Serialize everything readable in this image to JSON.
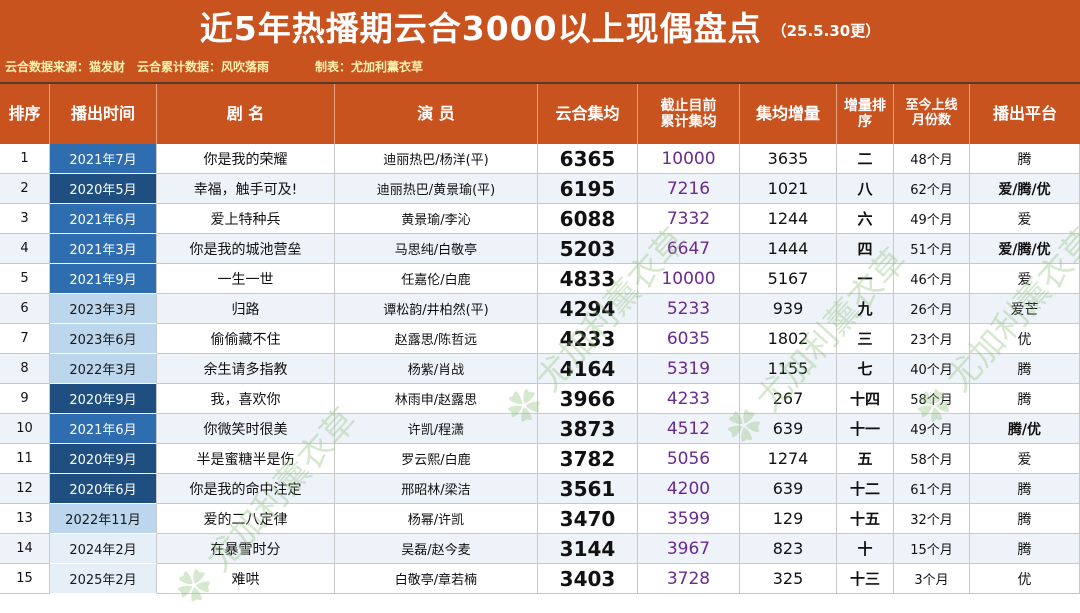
{
  "title": "近5年热播期云合3000以上现偶盘点",
  "update_note": "（25.5.30更）",
  "info": {
    "source": "云合数据来源：猫发财",
    "cumulative_source": "云合累计数据：风吹落雨",
    "made_by": "制表：尤加利薰衣草"
  },
  "columns": [
    "排序",
    "播出时间",
    "剧 名",
    "演 员",
    "云合集均",
    "截止目前\n累计集均",
    "集均增量",
    "增量排\n序",
    "至今上线\n月份数",
    "播出平台"
  ],
  "watermark_text": "尤加利薰衣草",
  "rows": [
    {
      "rank": "1",
      "date": "2021年7月",
      "drama": "你是我的荣耀",
      "actors": "迪丽热巴/杨洋(平)",
      "avg": "6365",
      "cum": "10000",
      "inc": "3635",
      "inc_rank": "二",
      "months": "48个月",
      "platform": "腾",
      "date_color": "#2f6db1"
    },
    {
      "rank": "2",
      "date": "2020年5月",
      "drama": "幸福，触手可及!",
      "actors": "迪丽热巴/黄景瑜(平)",
      "avg": "6195",
      "cum": "7216",
      "inc": "1021",
      "inc_rank": "八",
      "months": "62个月",
      "platform": "爱/腾/优",
      "date_color": "#1f4f80"
    },
    {
      "rank": "3",
      "date": "2021年6月",
      "drama": "爱上特种兵",
      "actors": "黄景瑜/李沁",
      "avg": "6088",
      "cum": "7332",
      "inc": "1244",
      "inc_rank": "六",
      "months": "49个月",
      "platform": "爱",
      "date_color": "#2f6db1"
    },
    {
      "rank": "4",
      "date": "2021年3月",
      "drama": "你是我的城池营垒",
      "actors": "马思纯/白敬亭",
      "avg": "5203",
      "cum": "6647",
      "inc": "1444",
      "inc_rank": "四",
      "months": "51个月",
      "platform": "爱/腾/优",
      "date_color": "#2f6db1"
    },
    {
      "rank": "5",
      "date": "2021年9月",
      "drama": "一生一世",
      "actors": "任嘉伦/白鹿",
      "avg": "4833",
      "cum": "10000",
      "inc": "5167",
      "inc_rank": "一",
      "months": "46个月",
      "platform": "爱",
      "date_color": "#2f6db1"
    },
    {
      "rank": "6",
      "date": "2023年3月",
      "drama": "归路",
      "actors": "谭松韵/井柏然(平)",
      "avg": "4294",
      "cum": "5233",
      "inc": "939",
      "inc_rank": "九",
      "months": "26个月",
      "platform": "爱芒",
      "date_color": "#bcd6ee"
    },
    {
      "rank": "7",
      "date": "2023年6月",
      "drama": "偷偷藏不住",
      "actors": "赵露思/陈哲远",
      "avg": "4233",
      "cum": "6035",
      "inc": "1802",
      "inc_rank": "三",
      "months": "23个月",
      "platform": "优",
      "date_color": "#bcd6ee"
    },
    {
      "rank": "8",
      "date": "2022年3月",
      "drama": "余生请多指教",
      "actors": "杨紫/肖战",
      "avg": "4164",
      "cum": "5319",
      "inc": "1155",
      "inc_rank": "七",
      "months": "40个月",
      "platform": "腾",
      "date_color": "#bcd6ee"
    },
    {
      "rank": "9",
      "date": "2020年9月",
      "drama": "我，喜欢你",
      "actors": "林雨申/赵露思",
      "avg": "3966",
      "cum": "4233",
      "inc": "267",
      "inc_rank": "十四",
      "months": "58个月",
      "platform": "腾",
      "date_color": "#1f4f80"
    },
    {
      "rank": "10",
      "date": "2021年6月",
      "drama": "你微笑时很美",
      "actors": "许凯/程潇",
      "avg": "3873",
      "cum": "4512",
      "inc": "639",
      "inc_rank": "十一",
      "months": "49个月",
      "platform": "腾/优",
      "date_color": "#2f6db1"
    },
    {
      "rank": "11",
      "date": "2020年9月",
      "drama": "半是蜜糖半是伤",
      "actors": "罗云熙/白鹿",
      "avg": "3782",
      "cum": "5056",
      "inc": "1274",
      "inc_rank": "五",
      "months": "58个月",
      "platform": "爱",
      "date_color": "#1f4f80"
    },
    {
      "rank": "12",
      "date": "2020年6月",
      "drama": "你是我的命中注定",
      "actors": "邢昭林/梁洁",
      "avg": "3561",
      "cum": "4200",
      "inc": "639",
      "inc_rank": "十二",
      "months": "61个月",
      "platform": "腾",
      "date_color": "#1f4f80"
    },
    {
      "rank": "13",
      "date": "2022年11月",
      "drama": "爱的二八定律",
      "actors": "杨幂/许凯",
      "avg": "3470",
      "cum": "3599",
      "inc": "129",
      "inc_rank": "十五",
      "months": "32个月",
      "platform": "腾",
      "date_color": "#bcd6ee"
    },
    {
      "rank": "14",
      "date": "2024年2月",
      "drama": "在暴雪时分",
      "actors": "吴磊/赵今麦",
      "avg": "3144",
      "cum": "3967",
      "inc": "823",
      "inc_rank": "十",
      "months": "15个月",
      "platform": "腾",
      "date_color": "#e6eef8"
    },
    {
      "rank": "15",
      "date": "2025年2月",
      "drama": "难哄",
      "actors": "白敬亭/章若楠",
      "avg": "3403",
      "cum": "3728",
      "inc": "325",
      "inc_rank": "十三",
      "months": "3个月",
      "platform": "优",
      "date_color": "#e6eef8"
    }
  ]
}
